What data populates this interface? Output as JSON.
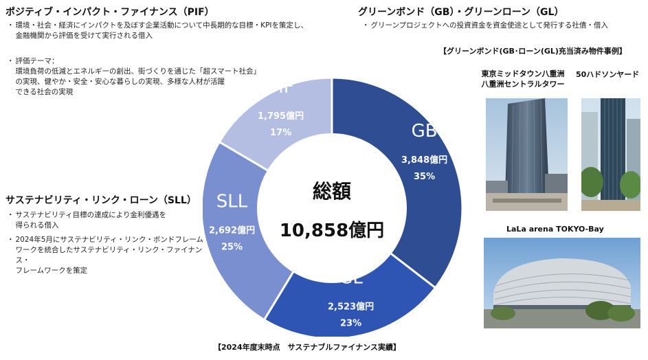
{
  "pif": {
    "title": "ポジティブ・インパクト・ファイナンス（PIF）",
    "desc": "環境・社会・経済にインパクトを及ぼす企業活動について中長期的な目標・KPIを策定し、\n金融機関から評価を受けて実行される借入",
    "theme": "評価テーマ：\n環境負荷の低減とエネルギーの創出、街づくりを通じた「超スマート社会」\nの実現、健やか・安全・安心な暮らしの実現、多様な人材が活躍\nできる社会の実現"
  },
  "sll": {
    "title": "サステナビリティ・リンク・ローン（SLL）",
    "items": [
      "サステナビリティ目標の達成により金利優遇を\n得られる借入",
      "2024年5月にサステナビリティ・リンク・ボンドフレーム\nワークを統合したサステナビリティ・リンク・ファイナンス・\nフレームワークを策定"
    ]
  },
  "gb": {
    "title": "グリーンボンド（GB）・グリーンローン（GL）",
    "desc": "グリーンプロジェクトへの投資資金を資金使途として発行する社債・借入"
  },
  "cases": {
    "title": "【グリーンボンド(GB･ローン(GL)充当済み物件事例】",
    "items": [
      {
        "label": "東京ミッドタウン八重洲\n八重洲セントラルタワー"
      },
      {
        "label": "50ハドソンヤード"
      },
      {
        "label": "LaLa arena TOKYO-Bay"
      }
    ]
  },
  "bullets": {
    "mid": "・",
    "small": "・"
  },
  "footer": "【2024年度末時点　サステナブルファイナンス実績】",
  "chart_data": {
    "type": "pie",
    "title": "【2024年度末時点　サステナブルファイナンス実績】",
    "center_label": "総額",
    "total": "10,858億円",
    "slices": [
      {
        "label": "GB",
        "value": 3848,
        "value_label": "3,848億円",
        "pct_label": "35%",
        "color": "#2e4d93"
      },
      {
        "label": "GL",
        "value": 2523,
        "value_label": "2,523億円",
        "pct_label": "23%",
        "color": "#2f55b4"
      },
      {
        "label": "SLL",
        "value": 2692,
        "value_label": "2,692億円",
        "pct_label": "25%",
        "color": "#7a8fd0"
      },
      {
        "label": "PIF",
        "value": 1795,
        "value_label": "1,795億円",
        "pct_label": "17%",
        "color": "#b3bee2"
      }
    ]
  }
}
